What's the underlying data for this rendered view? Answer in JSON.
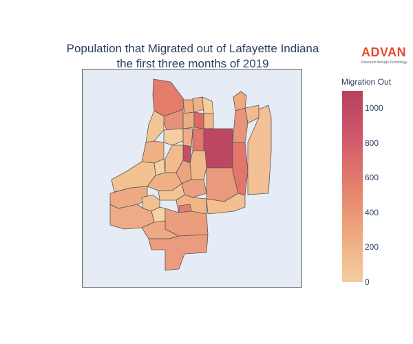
{
  "title": {
    "line1": "Population that Migrated out of Lafayette Indiana",
    "line2": "the first three months of 2019"
  },
  "logo": {
    "word": "ADVAN",
    "tagline": "Research through Technology",
    "color": "#e8492c"
  },
  "legend": {
    "title": "Migration Out",
    "min": 0,
    "max": 1100,
    "ticks": [
      "0",
      "200",
      "400",
      "600",
      "800",
      "1000"
    ],
    "colorscale": [
      "#f3cea0",
      "#eea97e",
      "#e4806b",
      "#d2596b",
      "#b8405e"
    ]
  },
  "map": {
    "background": "#e5ecf6",
    "border_color": "#5b5b5b"
  },
  "chart_data": {
    "type": "choropleth",
    "title": "Population that Migrated out of Lafayette Indiana the first three months of 2019",
    "colorbar_title": "Migration Out",
    "range": [
      0,
      1100
    ]
  }
}
